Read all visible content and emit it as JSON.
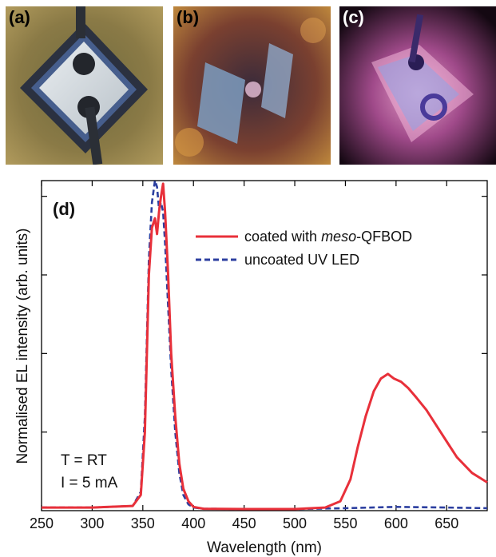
{
  "photos": [
    {
      "label": "(a)",
      "label_color": "#111111"
    },
    {
      "label": "(b)",
      "label_color": "#111111"
    },
    {
      "label": "(c)",
      "label_color": "#ffffff"
    }
  ],
  "chart_data": {
    "type": "line",
    "panel_label": "(d)",
    "xlabel": "Wavelength (nm)",
    "ylabel": "Normalised EL intensity (arb. units)",
    "xlim": [
      250,
      690
    ],
    "ylim": [
      0,
      1.05
    ],
    "xticks": [
      250,
      300,
      350,
      400,
      450,
      500,
      550,
      600,
      650
    ],
    "xtick_labels": [
      "250",
      "300",
      "350",
      "400",
      "450",
      "500",
      "550",
      "600",
      "650"
    ],
    "yticks": [
      0.25,
      0.5,
      0.75,
      1.0
    ],
    "legend_position": "top-right",
    "annotations": [
      "T = RT",
      "I = 5 mA"
    ],
    "series": [
      {
        "name": "coated with meso-QFBOD",
        "name_prefix": "coated with ",
        "name_italic": "meso",
        "name_suffix": "-QFBOD",
        "color": "#e8303a",
        "dash": "solid",
        "x": [
          250,
          300,
          340,
          348,
          352,
          356,
          359,
          362,
          364,
          366,
          368,
          370,
          372,
          375,
          378,
          382,
          386,
          390,
          395,
          400,
          410,
          450,
          500,
          530,
          545,
          555,
          562,
          570,
          578,
          585,
          592,
          598,
          605,
          612,
          620,
          630,
          640,
          650,
          660,
          675,
          690
        ],
        "y": [
          0.01,
          0.01,
          0.015,
          0.05,
          0.25,
          0.75,
          0.9,
          0.93,
          0.88,
          0.95,
          1.0,
          1.04,
          0.95,
          0.75,
          0.5,
          0.3,
          0.15,
          0.07,
          0.03,
          0.012,
          0.006,
          0.005,
          0.005,
          0.01,
          0.03,
          0.1,
          0.2,
          0.3,
          0.38,
          0.42,
          0.435,
          0.42,
          0.41,
          0.39,
          0.36,
          0.32,
          0.27,
          0.22,
          0.17,
          0.12,
          0.09
        ]
      },
      {
        "name": "uncoated UV LED",
        "color": "#2c3fa0",
        "dash": "dashed",
        "x": [
          250,
          300,
          340,
          348,
          352,
          356,
          359,
          362,
          364,
          366,
          368,
          370,
          372,
          375,
          378,
          382,
          386,
          390,
          395,
          400,
          410,
          450,
          500,
          550,
          600,
          650,
          690
        ],
        "y": [
          0.01,
          0.01,
          0.015,
          0.06,
          0.3,
          0.8,
          0.98,
          1.05,
          1.03,
          0.96,
          0.98,
          0.95,
          0.85,
          0.65,
          0.45,
          0.25,
          0.12,
          0.05,
          0.02,
          0.01,
          0.006,
          0.005,
          0.005,
          0.008,
          0.012,
          0.01,
          0.008
        ]
      }
    ]
  }
}
